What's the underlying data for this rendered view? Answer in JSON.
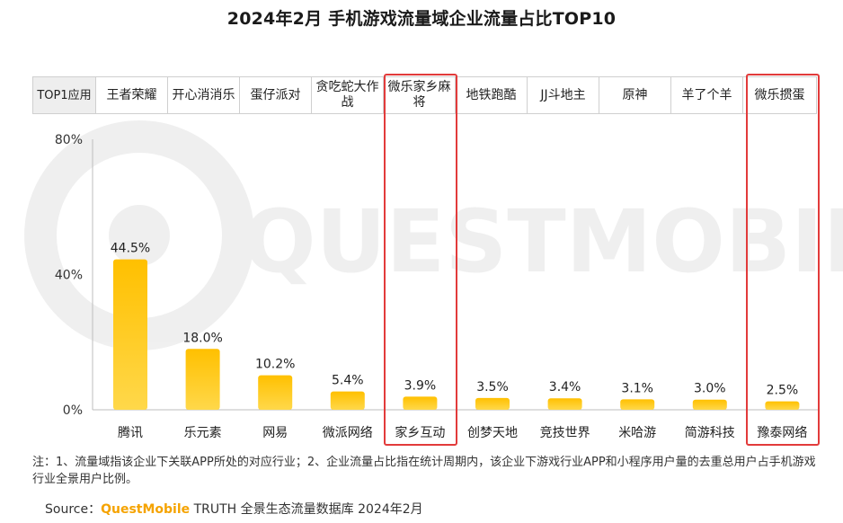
{
  "title": "2024年2月 手机游戏流量域企业流量占比TOP10",
  "top_app_header": "TOP1应用",
  "top_apps": [
    "王者荣耀",
    "开心消消乐",
    "蛋仔派对",
    "贪吃蛇大作战",
    "微乐家乡麻将",
    "地铁跑酷",
    "JJ斗地主",
    "原神",
    "羊了个羊",
    "微乐掼蛋"
  ],
  "highlight_color": "#e23b3b",
  "bar_color": "#ffc000",
  "chart_data": {
    "type": "bar",
    "categories": [
      "腾讯",
      "乐元素",
      "网易",
      "微派网络",
      "家乡互动",
      "创梦天地",
      "竞技世界",
      "米哈游",
      "简游科技",
      "豫泰网络"
    ],
    "values": [
      44.5,
      18.0,
      10.2,
      5.4,
      3.9,
      3.5,
      3.4,
      3.1,
      3.0,
      2.5
    ],
    "value_labels": [
      "44.5%",
      "18.0%",
      "10.2%",
      "5.4%",
      "3.9%",
      "3.5%",
      "3.4%",
      "3.1%",
      "3.0%",
      "2.5%"
    ],
    "ylim": [
      0,
      80
    ],
    "yticks": [
      "0%",
      "40%",
      "80%"
    ],
    "highlighted_categories": [
      "家乡互动",
      "豫泰网络"
    ],
    "grid": false,
    "legend": false
  },
  "watermark": "QUESTMOBILE",
  "note": "注：1、流量域指该企业下关联APP所处的对应行业；2、企业流量占比指在统计周期内，该企业下游戏行业APP和小程序用户量的去重总用户占手机游戏行业全景用户比例。",
  "source": {
    "prefix": "Source：",
    "brand": "QuestMobile",
    "suffix": " TRUTH 全景生态流量数据库 2024年2月"
  }
}
